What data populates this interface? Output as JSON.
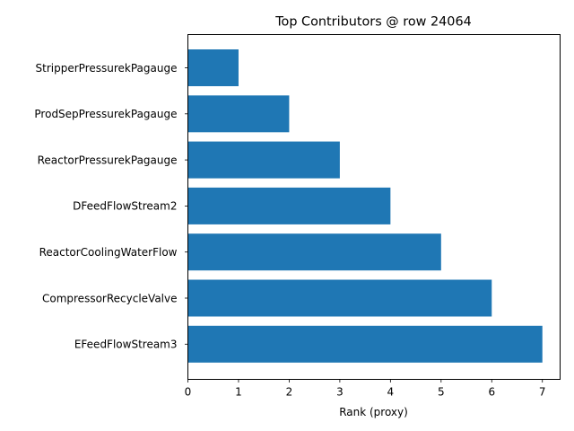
{
  "chart_data": {
    "type": "bar",
    "orientation": "horizontal",
    "title": "Top Contributors @ row 24064",
    "xlabel": "Rank (proxy)",
    "ylabel": "",
    "categories": [
      "StripperPressurekPagauge",
      "ProdSepPressurekPagauge",
      "ReactorPressurekPagauge",
      "DFeedFlowStream2",
      "ReactorCoolingWaterFlow",
      "CompressorRecycleValve",
      "EFeedFlowStream3"
    ],
    "values": [
      1,
      2,
      3,
      4,
      5,
      6,
      7
    ],
    "xlim": [
      0,
      7.35
    ],
    "xticks": [
      "0",
      "1",
      "2",
      "3",
      "4",
      "5",
      "6",
      "7"
    ],
    "grid": false,
    "bar_color": "#1f77b4"
  }
}
